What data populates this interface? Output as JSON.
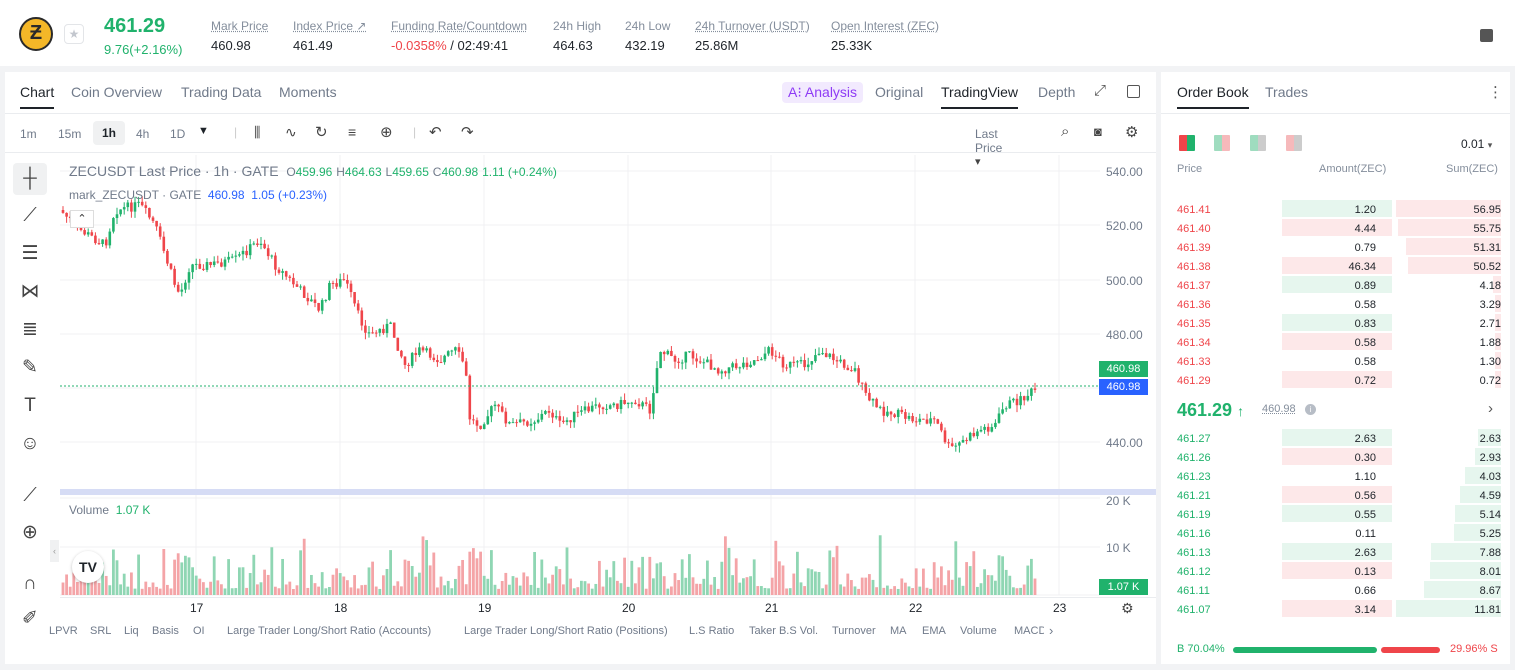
{
  "ticker": {
    "symbol_icon": "zcash-logo",
    "coin_letter": "Ƶ",
    "last_price": "461.29",
    "change": "9.76(+2.16%)",
    "stats": [
      {
        "label": "Mark Price",
        "value": "460.98"
      },
      {
        "label": "Index Price ↗",
        "value": "461.49"
      },
      {
        "label": "Funding Rate/Countdown",
        "value_red": "-0.0358%",
        "value": " / 02:49:41"
      },
      {
        "label": "24h High",
        "value": "464.63"
      },
      {
        "label": "24h Low",
        "value": "432.19"
      },
      {
        "label": "24h Turnover (USDT)",
        "value": "25.86M"
      },
      {
        "label": "Open Interest (ZEC)",
        "value": "25.33K"
      }
    ]
  },
  "chart_tabs": {
    "chart": "Chart",
    "coin_overview": "Coin Overview",
    "trading_data": "Trading Data",
    "moments": "Moments"
  },
  "view_tabs": {
    "analysis": "A⁝ Analysis",
    "original": "Original",
    "tradingview": "TradingView",
    "depth": "Depth"
  },
  "toolbar": {
    "intervals": [
      "1m",
      "15m",
      "1h",
      "4h",
      "1D"
    ],
    "selected": "1h",
    "price_type": "Last Price"
  },
  "legend": {
    "title": "ZECUSDT Last Price · 1h · GATE",
    "o_label": "O",
    "o": "459.96",
    "h_label": "H",
    "h": "464.63",
    "l_label": "L",
    "l": "459.65",
    "c_label": "C",
    "c": "460.98",
    "chg": "1.11 (+0.24%)",
    "mark_label": "mark_ZECUSDT · GATE",
    "mark_price": "460.98",
    "mark_chg": "1.05 (+0.23%)",
    "volume_label": "Volume",
    "volume_value": "1.07 K"
  },
  "price_axis": [
    "540.00",
    "520.00",
    "500.00",
    "480.00",
    "440.00"
  ],
  "price_tags": {
    "last": "460.98",
    "mark": "460.98"
  },
  "volume_axis": [
    "20 K",
    "10 K"
  ],
  "volume_tag": "1.07 K",
  "x_axis": [
    "17",
    "18",
    "19",
    "20",
    "21",
    "22",
    "23"
  ],
  "indicators": [
    "LPVR",
    "SRL",
    "Liq",
    "Basis",
    "OI",
    "Large Trader Long/Short Ratio (Accounts)",
    "Large Trader Long/Short Ratio (Positions)",
    "L.S Ratio",
    "Taker B.S Vol.",
    "Turnover",
    "MA",
    "EMA",
    "Volume",
    "MACD"
  ],
  "orderbook": {
    "tab_orderbook": "Order Book",
    "tab_trades": "Trades",
    "precision": "0.01",
    "h_price": "Price",
    "h_amount": "Amount(ZEC)",
    "h_sum": "Sum(ZEC)",
    "asks": [
      {
        "p": "461.41",
        "a": "1.20",
        "s": "56.95"
      },
      {
        "p": "461.40",
        "a": "4.44",
        "s": "55.75"
      },
      {
        "p": "461.39",
        "a": "0.79",
        "s": "51.31"
      },
      {
        "p": "461.38",
        "a": "46.34",
        "s": "50.52"
      },
      {
        "p": "461.37",
        "a": "0.89",
        "s": "4.18"
      },
      {
        "p": "461.36",
        "a": "0.58",
        "s": "3.29"
      },
      {
        "p": "461.35",
        "a": "0.83",
        "s": "2.71"
      },
      {
        "p": "461.34",
        "a": "0.58",
        "s": "1.88"
      },
      {
        "p": "461.33",
        "a": "0.58",
        "s": "1.30"
      },
      {
        "p": "461.29",
        "a": "0.72",
        "s": "0.72"
      }
    ],
    "mid_price": "461.29",
    "mid_arrow": "↑",
    "mid_mark": "460.98",
    "bids": [
      {
        "p": "461.27",
        "a": "2.63",
        "s": "2.63"
      },
      {
        "p": "461.26",
        "a": "0.30",
        "s": "2.93"
      },
      {
        "p": "461.23",
        "a": "1.10",
        "s": "4.03"
      },
      {
        "p": "461.21",
        "a": "0.56",
        "s": "4.59"
      },
      {
        "p": "461.19",
        "a": "0.55",
        "s": "5.14"
      },
      {
        "p": "461.16",
        "a": "0.11",
        "s": "5.25"
      },
      {
        "p": "461.13",
        "a": "2.63",
        "s": "7.88"
      },
      {
        "p": "461.12",
        "a": "0.13",
        "s": "8.01"
      },
      {
        "p": "461.11",
        "a": "0.66",
        "s": "8.67"
      },
      {
        "p": "461.07",
        "a": "3.14",
        "s": "11.81"
      }
    ],
    "buy_label": "B",
    "buy_pct": "70.04%",
    "sell_pct": "29.96%",
    "sell_label": "S",
    "buy_ratio": 0.7004
  },
  "colors": {
    "up": "#20b26c",
    "down": "#ef454a",
    "ask_bg": "#fde8e9",
    "bid_bg": "#e6f6ee"
  }
}
